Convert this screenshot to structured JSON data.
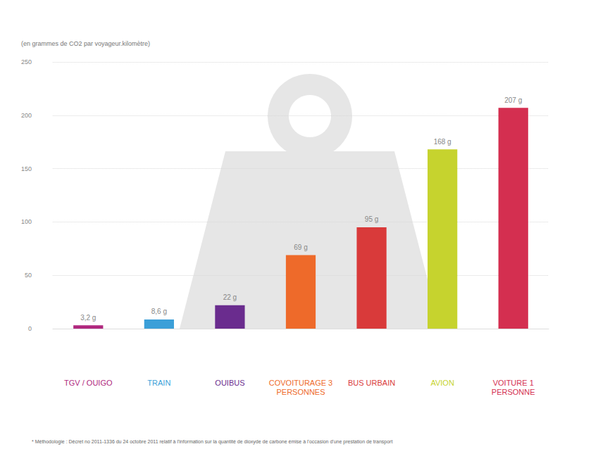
{
  "chart_data": {
    "type": "bar",
    "y_label": "(en grammes de CO2 par voyageur.kilomètre)",
    "footnote": "* Méthodologie : Décret no 2011-1336 du 24 octobre 2011 relatif à l'information sur la quantité de dioxyde de carbone émise à l'occasion d'une prestation de transport",
    "categories": [
      "TGV / OUIGO",
      "TRAIN",
      "OUIBUS",
      "COVOITURAGE 3 PERSONNES",
      "BUS URBAIN",
      "AVION",
      "VOITURE 1 PERSONNE"
    ],
    "values": [
      3.2,
      8.6,
      22,
      69,
      95,
      168,
      207
    ],
    "value_labels": [
      "3,2 g",
      "8,6 g",
      "22 g",
      "69 g",
      "95 g",
      "168 g",
      "207 g"
    ],
    "colors": [
      "#b0287e",
      "#3b9fd8",
      "#6a2c8e",
      "#ee6a2a",
      "#d93a3a",
      "#c6d32e",
      "#d42f50"
    ],
    "ylim": [
      0,
      250
    ],
    "yticks": [
      0,
      50,
      100,
      150,
      200,
      250
    ],
    "grid": true,
    "data_labels": true
  }
}
